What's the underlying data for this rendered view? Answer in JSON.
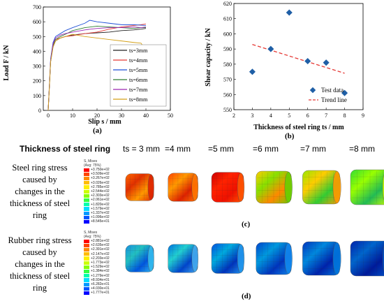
{
  "chart_data": [
    {
      "type": "line",
      "panel": "(a)",
      "xlabel": "Slip s / mm",
      "ylabel": "Load F / kN",
      "xlim": [
        -2,
        50
      ],
      "ylim": [
        0,
        700
      ],
      "xticks": [
        "0",
        "10",
        "20",
        "30",
        "40",
        "50"
      ],
      "yticks": [
        "0",
        "100",
        "200",
        "300",
        "400",
        "500",
        "600",
        "700"
      ],
      "legend_position": "right",
      "series": [
        {
          "name": "ts=3mm",
          "color": "#222222",
          "x": [
            0,
            0.5,
            1,
            2,
            3,
            5,
            7,
            10,
            15,
            20,
            25,
            30,
            35,
            38,
            40
          ],
          "y": [
            0,
            160,
            330,
            430,
            470,
            490,
            500,
            510,
            520,
            525,
            530,
            540,
            545,
            550,
            555
          ]
        },
        {
          "name": "ts=4mm",
          "color": "#e53935",
          "x": [
            0,
            0.5,
            1,
            2,
            3,
            5,
            7,
            10,
            15,
            20,
            25,
            30,
            35,
            38,
            40
          ],
          "y": [
            0,
            170,
            340,
            440,
            480,
            490,
            500,
            505,
            520,
            530,
            550,
            565,
            575,
            580,
            585
          ]
        },
        {
          "name": "ts=5mm",
          "color": "#1e4fd6",
          "x": [
            0,
            0.5,
            1,
            2,
            3,
            5,
            7,
            10,
            15,
            17,
            20,
            25,
            30,
            35,
            40
          ],
          "y": [
            0,
            170,
            350,
            460,
            500,
            520,
            540,
            560,
            590,
            610,
            600,
            590,
            580,
            580,
            575
          ]
        },
        {
          "name": "ts=6mm",
          "color": "#2e7d32",
          "x": [
            0,
            0.5,
            1,
            2,
            3,
            5,
            7,
            10,
            15,
            20,
            25,
            30,
            35,
            38,
            40
          ],
          "y": [
            0,
            160,
            330,
            440,
            480,
            500,
            515,
            540,
            560,
            570,
            565,
            560,
            555,
            560,
            560
          ]
        },
        {
          "name": "ts=7mm",
          "color": "#9c27b0",
          "x": [
            0,
            0.5,
            1,
            2,
            3,
            5,
            7,
            10,
            15,
            20,
            25,
            30,
            35,
            38,
            40
          ],
          "y": [
            0,
            160,
            340,
            450,
            490,
            510,
            520,
            530,
            545,
            555,
            560,
            560,
            565,
            560,
            565
          ]
        },
        {
          "name": "ts=8mm",
          "color": "#d4a017",
          "x": [
            0,
            0.5,
            1,
            2,
            3,
            5,
            7,
            10,
            15,
            20,
            25,
            30,
            35,
            38,
            41
          ],
          "y": [
            0,
            160,
            330,
            430,
            470,
            490,
            500,
            515,
            500,
            490,
            480,
            470,
            460,
            455,
            380
          ]
        }
      ]
    },
    {
      "type": "scatter",
      "panel": "(b)",
      "xlabel": "Thickness of steel ring ts / mm",
      "ylabel": "Shear capacity / kN",
      "xlim": [
        2,
        9
      ],
      "ylim": [
        550,
        620
      ],
      "xticks": [
        "2",
        "3",
        "4",
        "5",
        "6",
        "7",
        "8",
        "9"
      ],
      "yticks": [
        "550",
        "560",
        "570",
        "580",
        "590",
        "600",
        "610",
        "620"
      ],
      "legend_position": "bottom-right",
      "series": [
        {
          "name": "Test data",
          "color": "#1f5fa6",
          "x": [
            3,
            4,
            5,
            6,
            7,
            8
          ],
          "y": [
            575,
            590,
            614,
            582,
            581,
            561
          ]
        },
        {
          "name": "Trend line",
          "color": "#e53935",
          "x": [
            3,
            8
          ],
          "y": [
            593,
            574
          ]
        }
      ]
    }
  ],
  "panel_labels": {
    "a": "(a)",
    "b": "(b)",
    "c": "(c)",
    "d": "(d)"
  },
  "fem": {
    "header": "Thickness of steel ring",
    "thickness_labels": [
      "ts = 3 mm",
      "=4 mm",
      "=5 mm",
      "=6 mm",
      "=7 mm",
      "=8 mm"
    ],
    "row1_label_lines": [
      "Steel ring stress",
      "caused by",
      "changes in the",
      "thickness of steel",
      "ring"
    ],
    "row2_label_lines": [
      "Rubber ring stress",
      "caused by",
      "changes in the",
      "thickness of steel",
      "ring"
    ],
    "legend1": {
      "title1": "S, Mises",
      "title2": "(Avg: 75%)",
      "values": [
        "+3.750e+02",
        "+3.509e+02",
        "+3.267e+02",
        "+3.026e+02",
        "+2.785e+02",
        "+2.544e+02",
        "+2.303e+02",
        "+2.061e+02",
        "+1.820e+02",
        "+1.579e+02",
        "+1.337e+02",
        "+1.096e+02",
        "+8.545e+01"
      ]
    },
    "legend2": {
      "title1": "S, Mises",
      "title2": "(Avg: 75%)",
      "values": [
        "+2.881e+02",
        "+2.635e+02",
        "+2.391e+02",
        "+2.147e+02",
        "+2.203e+02",
        "+1.773e+02",
        "+1.529e+02",
        "+1.384e+02",
        "+1.279e+02",
        "+8.934e+01",
        "+6.282e+01",
        "+4.030e+01",
        "+1.777e+01"
      ]
    },
    "palette": [
      "#ff0000",
      "#ff4400",
      "#ff8800",
      "#ffbb00",
      "#ffee00",
      "#ccff00",
      "#88ff00",
      "#33ff44",
      "#00ffaa",
      "#00ddff",
      "#0099ff",
      "#0055ff",
      "#0000ff"
    ]
  }
}
